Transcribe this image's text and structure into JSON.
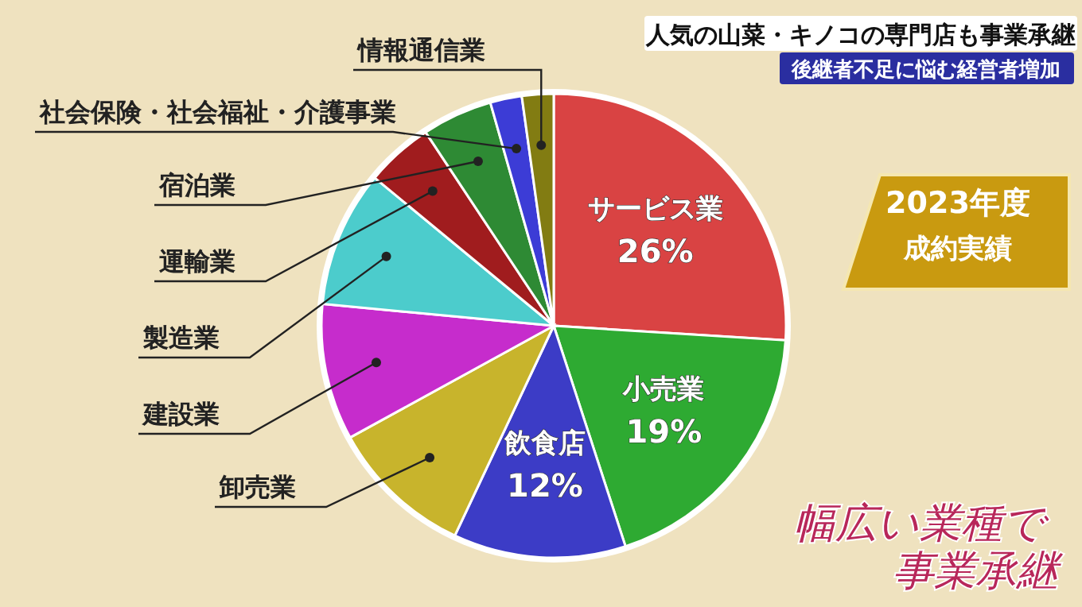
{
  "chart_data": {
    "type": "pie",
    "title": "人気の山菜・キノコの専門店も事業承継",
    "subtitle": "後継者不足に悩む経営者増加",
    "categories": [
      "サービス業",
      "小売業",
      "飲食店",
      "卸売業",
      "建設業",
      "製造業",
      "運輸業",
      "宿泊業",
      "社会保険・社会福祉・介護事業",
      "情報通信業"
    ],
    "values": [
      26,
      19,
      12,
      10,
      9.5,
      9.5,
      4.7,
      4.9,
      2.2,
      2.2
    ],
    "value_labels": [
      "26%",
      "19%",
      "12%",
      null,
      null,
      null,
      null,
      null,
      null,
      null
    ],
    "colors": [
      "#d94343",
      "#2eaa32",
      "#3c3cc6",
      "#c8b42c",
      "#c62ccc",
      "#4ccccc",
      "#a01c1e",
      "#2e8a34",
      "#3c3cd6",
      "#827c12"
    ],
    "annotations": [
      "2023年度",
      "成約実績",
      "幅広い業種で",
      "事業承継"
    ]
  }
}
